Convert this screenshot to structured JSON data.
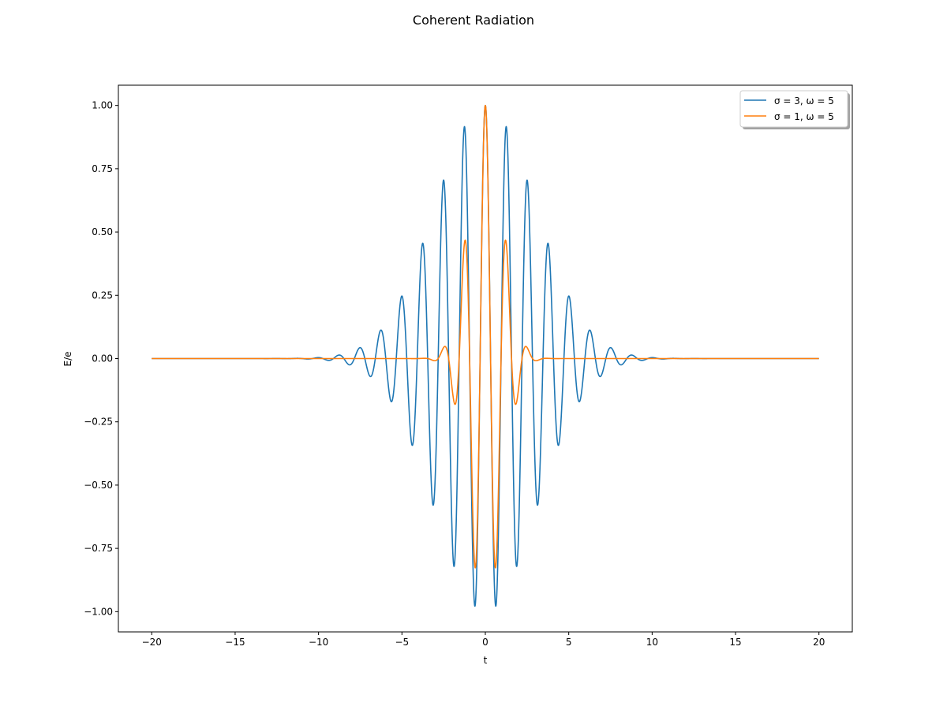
{
  "chart_data": {
    "type": "line",
    "title": "Coherent Radiation",
    "xlabel": "t",
    "ylabel": "E/e",
    "xlim": [
      -22,
      22
    ],
    "ylim": [
      -1.08,
      1.08
    ],
    "xticks": [
      -20,
      -15,
      -10,
      -5,
      0,
      5,
      10,
      15,
      20
    ],
    "xtick_labels": [
      "−20",
      "−15",
      "−10",
      "−5",
      "0",
      "5",
      "10",
      "15",
      "20"
    ],
    "yticks": [
      -1.0,
      -0.75,
      -0.5,
      -0.25,
      0.0,
      0.25,
      0.5,
      0.75,
      1.0
    ],
    "ytick_labels": [
      "−1.00",
      "−0.75",
      "−0.50",
      "−0.25",
      "0.00",
      "0.25",
      "0.50",
      "0.75",
      "1.00"
    ],
    "grid": false,
    "legend_position": "top-right",
    "x_domain": [
      -20,
      20
    ],
    "series": [
      {
        "name": "σ = 3, ω = 5",
        "sigma": 3,
        "omega": 5,
        "color": "#1f77b4",
        "formula": "exp(-t^2/(2*sigma^2)) * cos(omega*t)"
      },
      {
        "name": "σ = 1, ω = 5",
        "sigma": 1,
        "omega": 5,
        "color": "#ff7f0e",
        "formula": "exp(-t^2/(2*sigma^2)) * cos(omega*t)"
      }
    ]
  }
}
